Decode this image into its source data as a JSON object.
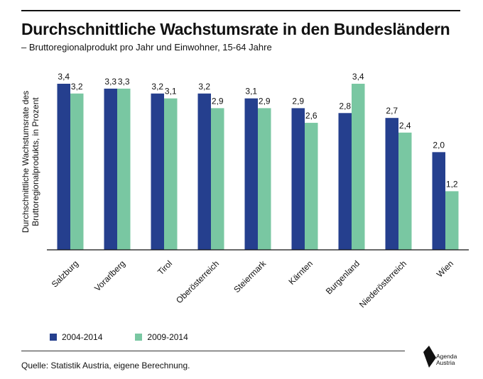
{
  "header": {
    "title": "Durchschnittliche Wachstumsrate in den Bundesländern",
    "subtitle": "– Bruttoregionalprodukt pro Jahr und Einwohner, 15-64 Jahre"
  },
  "chart_data": {
    "type": "bar",
    "categories": [
      "Salzburg",
      "Vorarlberg",
      "Tirol",
      "Oberösterreich",
      "Steiermark",
      "Kärnten",
      "Burgenland",
      "Niederösterreich",
      "Wien"
    ],
    "series": [
      {
        "name": "2004-2014",
        "color": "#253f8e",
        "values": [
          3.4,
          3.3,
          3.2,
          3.2,
          3.1,
          2.9,
          2.8,
          2.7,
          2.0
        ]
      },
      {
        "name": "2009-2014",
        "color": "#79c7a2",
        "values": [
          3.2,
          3.3,
          3.1,
          2.9,
          2.9,
          2.6,
          3.4,
          2.4,
          1.2
        ]
      }
    ],
    "value_labels": [
      [
        "3,4",
        "3,3",
        "3,2",
        "3,2",
        "3,1",
        "2,9",
        "2,8",
        "2,7",
        "2,0"
      ],
      [
        "3,2",
        "3,3",
        "3,1",
        "2,9",
        "2,9",
        "2,6",
        "3,4",
        "2,4",
        "1,2"
      ]
    ],
    "ylabel": [
      "Durchschnittliche Wachstumsrate des",
      "Bruttoregionalprodukts, in Prozent"
    ],
    "ylim": [
      0,
      3.4
    ],
    "grid": false,
    "legend_position": "bottom-left"
  },
  "footer": {
    "source": "Quelle: Statistik Austria, eigene Berechnung.",
    "logo_line1": "Agenda",
    "logo_line2": "Austria"
  }
}
